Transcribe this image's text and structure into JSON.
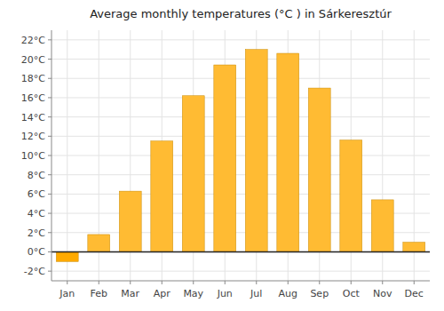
{
  "chart_data": {
    "type": "bar",
    "title": "Average monthly temperatures (°C ) in Sárkeresztúr",
    "categories": [
      "Jan",
      "Feb",
      "Mar",
      "Apr",
      "May",
      "Jun",
      "Jul",
      "Aug",
      "Sep",
      "Oct",
      "Nov",
      "Dec"
    ],
    "values": [
      -1.0,
      1.8,
      6.3,
      11.5,
      16.2,
      19.4,
      21.0,
      20.6,
      17.0,
      11.6,
      5.4,
      1.0
    ],
    "colors": [
      "#FFAA00",
      "#FFBB33",
      "#FFBB33",
      "#FFBB33",
      "#FFBB33",
      "#FFBB33",
      "#FFBB33",
      "#FFBB33",
      "#FFBB33",
      "#FFBB33",
      "#FFBB33",
      "#FFBB33"
    ],
    "ylim": [
      -3,
      23
    ],
    "yticks": [
      {
        "value": -2,
        "label": "-2°C"
      },
      {
        "value": 0,
        "label": "0°C"
      },
      {
        "value": 2,
        "label": "2°C"
      },
      {
        "value": 4,
        "label": "4°C"
      },
      {
        "value": 6,
        "label": "6°C"
      },
      {
        "value": 8,
        "label": "8°C"
      },
      {
        "value": 10,
        "label": "10°C"
      },
      {
        "value": 12,
        "label": "12°C"
      },
      {
        "value": 14,
        "label": "14°C"
      },
      {
        "value": 16,
        "label": "16°C"
      },
      {
        "value": 18,
        "label": "18°C"
      },
      {
        "value": 20,
        "label": "20°C"
      },
      {
        "value": 22,
        "label": "22°C"
      }
    ],
    "grid": true
  }
}
